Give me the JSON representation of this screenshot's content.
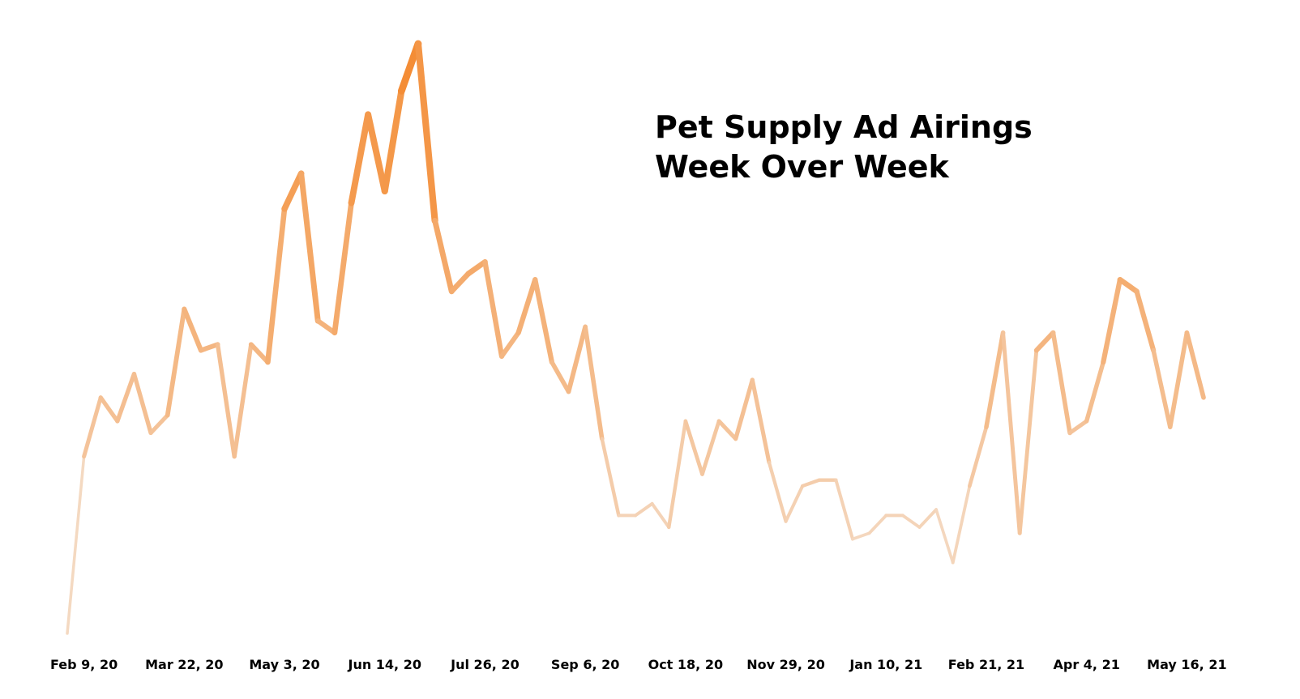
{
  "chart_data": {
    "type": "line",
    "title_lines": [
      "Pet Supply Ad Airings",
      "Week Over Week"
    ],
    "xlabel": "",
    "ylabel": "",
    "x_tick_labels": [
      "Feb 9, 20",
      "Mar 22, 20",
      "May 3, 20",
      "Jun 14, 20",
      "Jul 26, 20",
      "Sep 6, 20",
      "Oct 18, 20",
      "Nov 29, 20",
      "Jan 10, 21",
      "Feb 21, 21",
      "Apr 4, 21",
      "May 16, 21"
    ],
    "tick_every_n_weeks": 6,
    "values": [
      0,
      30,
      40,
      36,
      44,
      34,
      37,
      55,
      48,
      49,
      30,
      49,
      46,
      72,
      78,
      53,
      51,
      73,
      88,
      75,
      92,
      100,
      70,
      58,
      61,
      63,
      47,
      51,
      60,
      46,
      41,
      52,
      33,
      20,
      20,
      22,
      18,
      36,
      27,
      36,
      33,
      43,
      29,
      19,
      25,
      26,
      26,
      16,
      17,
      20,
      20,
      18,
      21,
      12,
      25,
      35,
      51,
      17,
      48,
      51,
      34,
      36,
      46,
      60,
      58,
      48,
      35,
      51,
      40
    ],
    "ylim": [
      0,
      100
    ],
    "grid": false,
    "legend": "none",
    "color": "#F48A30"
  }
}
